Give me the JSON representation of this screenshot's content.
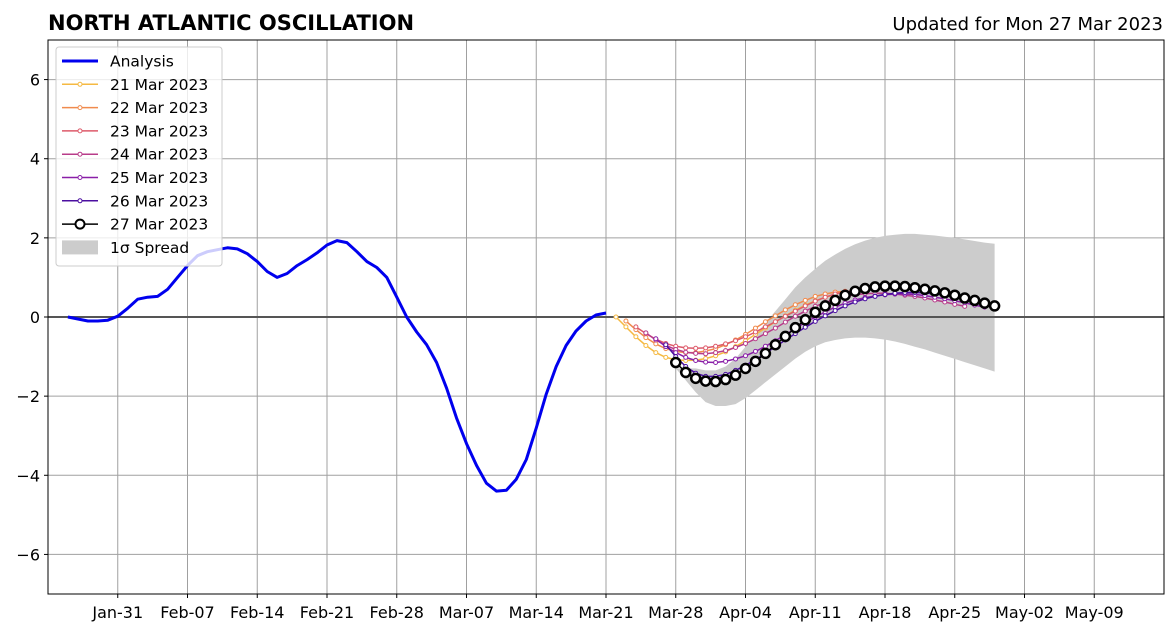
{
  "header": {
    "title": "NORTH ATLANTIC OSCILLATION",
    "updated": "Updated for Mon 27 Mar 2023"
  },
  "chart_data": {
    "type": "line",
    "x_start_date": "2023-01-24",
    "x_end_date": "2023-05-16",
    "xlim": [
      0,
      112
    ],
    "ylim": [
      -7,
      7
    ],
    "grid": true,
    "legend_position": "top-left",
    "yticks": [
      6,
      4,
      2,
      0,
      -2,
      -4,
      -6
    ],
    "ytick_labels": [
      "6",
      "4",
      "2",
      "0",
      "−2",
      "−4",
      "−6"
    ],
    "xticks": [
      {
        "day": 7,
        "label": "Jan-31"
      },
      {
        "day": 14,
        "label": "Feb-07"
      },
      {
        "day": 21,
        "label": "Feb-14"
      },
      {
        "day": 28,
        "label": "Feb-21"
      },
      {
        "day": 35,
        "label": "Feb-28"
      },
      {
        "day": 42,
        "label": "Mar-07"
      },
      {
        "day": 49,
        "label": "Mar-14"
      },
      {
        "day": 56,
        "label": "Mar-21"
      },
      {
        "day": 63,
        "label": "Mar-28"
      },
      {
        "day": 70,
        "label": "Apr-04"
      },
      {
        "day": 77,
        "label": "Apr-11"
      },
      {
        "day": 84,
        "label": "Apr-18"
      },
      {
        "day": 91,
        "label": "Apr-25"
      },
      {
        "day": 98,
        "label": "May-02"
      },
      {
        "day": 105,
        "label": "May-09"
      }
    ],
    "analysis": {
      "name": "Analysis",
      "color": "#0000ee",
      "start_day": 2,
      "values": [
        0.0,
        -0.05,
        -0.1,
        -0.1,
        -0.08,
        0.02,
        0.22,
        0.45,
        0.5,
        0.52,
        0.7,
        1.0,
        1.3,
        1.55,
        1.65,
        1.7,
        1.75,
        1.72,
        1.6,
        1.4,
        1.15,
        1.0,
        1.1,
        1.3,
        1.45,
        1.62,
        1.82,
        1.93,
        1.88,
        1.65,
        1.4,
        1.25,
        1.0,
        0.5,
        0.0,
        -0.38,
        -0.7,
        -1.15,
        -1.8,
        -2.55,
        -3.2,
        -3.75,
        -4.2,
        -4.4,
        -4.38,
        -4.1,
        -3.6,
        -2.8,
        -1.95,
        -1.25,
        -0.72,
        -0.35,
        -0.1,
        0.05,
        0.1
      ]
    },
    "forecasts": [
      {
        "name": "21 Mar 2023",
        "color": "#f5b942",
        "start_day": 57,
        "values": [
          0.0,
          -0.25,
          -0.5,
          -0.72,
          -0.9,
          -1.02,
          -1.08,
          -1.1,
          -1.09,
          -1.05,
          -0.98,
          -0.88,
          -0.75,
          -0.6,
          -0.44,
          -0.28,
          -0.12,
          0.03,
          0.17,
          0.3,
          0.41,
          0.5,
          0.56
        ]
      },
      {
        "name": "22 Mar 2023",
        "color": "#f08b4e",
        "start_day": 58,
        "values": [
          -0.1,
          -0.32,
          -0.52,
          -0.68,
          -0.8,
          -0.87,
          -0.9,
          -0.9,
          -0.86,
          -0.8,
          -0.7,
          -0.58,
          -0.44,
          -0.28,
          -0.12,
          0.03,
          0.18,
          0.31,
          0.42,
          0.52,
          0.58,
          0.63,
          0.65
        ]
      },
      {
        "name": "23 Mar 2023",
        "color": "#dd5a6a",
        "start_day": 59,
        "values": [
          -0.25,
          -0.42,
          -0.56,
          -0.67,
          -0.74,
          -0.78,
          -0.79,
          -0.78,
          -0.74,
          -0.68,
          -0.6,
          -0.5,
          -0.38,
          -0.25,
          -0.12,
          0.02,
          0.15,
          0.28,
          0.4,
          0.5,
          0.58,
          0.64,
          0.67
        ]
      },
      {
        "name": "24 Mar 2023",
        "color": "#b83c8a",
        "start_day": 60,
        "values": [
          -0.4,
          -0.58,
          -0.72,
          -0.82,
          -0.89,
          -0.92,
          -0.93,
          -0.9,
          -0.85,
          -0.77,
          -0.67,
          -0.55,
          -0.42,
          -0.28,
          -0.13,
          0.02,
          0.15,
          0.27,
          0.37,
          0.45,
          0.52,
          0.56,
          0.59,
          0.6,
          0.6,
          0.58,
          0.55,
          0.52,
          0.48,
          0.43,
          0.38,
          0.32,
          0.27
        ]
      },
      {
        "name": "25 Mar 2023",
        "color": "#8a1fa8",
        "start_day": 61,
        "values": [
          -0.55,
          -0.75,
          -0.9,
          -1.02,
          -1.1,
          -1.14,
          -1.15,
          -1.12,
          -1.06,
          -0.98,
          -0.87,
          -0.74,
          -0.6,
          -0.45,
          -0.29,
          -0.14,
          0.0,
          0.13,
          0.25,
          0.35,
          0.43,
          0.49,
          0.53,
          0.56,
          0.58,
          0.58,
          0.57,
          0.54,
          0.5,
          0.46,
          0.41,
          0.36,
          0.3,
          0.25
        ]
      },
      {
        "name": "26 Mar 2023",
        "color": "#4b0fa0",
        "start_day": 62,
        "values": [
          -0.7,
          -1.0,
          -1.25,
          -1.42,
          -1.5,
          -1.5,
          -1.45,
          -1.35,
          -1.22,
          -1.08,
          -0.92,
          -0.75,
          -0.58,
          -0.42,
          -0.26,
          -0.11,
          0.03,
          0.16,
          0.28,
          0.38,
          0.46,
          0.52,
          0.57,
          0.6,
          0.62,
          0.62,
          0.61,
          0.58,
          0.55,
          0.51,
          0.46,
          0.41,
          0.36,
          0.31
        ]
      }
    ],
    "latest": {
      "name": "27 Mar 2023",
      "start_day": 63,
      "values": [
        -1.15,
        -1.4,
        -1.55,
        -1.62,
        -1.63,
        -1.58,
        -1.47,
        -1.3,
        -1.12,
        -0.92,
        -0.7,
        -0.49,
        -0.27,
        -0.07,
        0.12,
        0.28,
        0.42,
        0.55,
        0.65,
        0.72,
        0.76,
        0.78,
        0.78,
        0.77,
        0.74,
        0.7,
        0.66,
        0.61,
        0.55,
        0.48,
        0.42,
        0.35,
        0.28
      ]
    },
    "spread": {
      "name": "1σ Spread",
      "color": "#cccccc",
      "start_day": 63,
      "upper": [
        -1.3,
        -1.3,
        -1.3,
        -1.35,
        -1.35,
        -1.25,
        -1.05,
        -0.75,
        -0.45,
        -0.15,
        0.15,
        0.45,
        0.75,
        1.0,
        1.22,
        1.42,
        1.58,
        1.72,
        1.84,
        1.93,
        2.0,
        2.05,
        2.08,
        2.1,
        2.1,
        2.08,
        2.06,
        2.03,
        2.0,
        1.96,
        1.92,
        1.88,
        1.85
      ],
      "lower": [
        -1.3,
        -1.6,
        -1.9,
        -2.15,
        -2.25,
        -2.25,
        -2.2,
        -2.05,
        -1.85,
        -1.65,
        -1.45,
        -1.25,
        -1.05,
        -0.88,
        -0.74,
        -0.64,
        -0.58,
        -0.54,
        -0.52,
        -0.52,
        -0.54,
        -0.57,
        -0.62,
        -0.68,
        -0.75,
        -0.82,
        -0.9,
        -0.98,
        -1.06,
        -1.14,
        -1.22,
        -1.3,
        -1.38
      ]
    }
  }
}
